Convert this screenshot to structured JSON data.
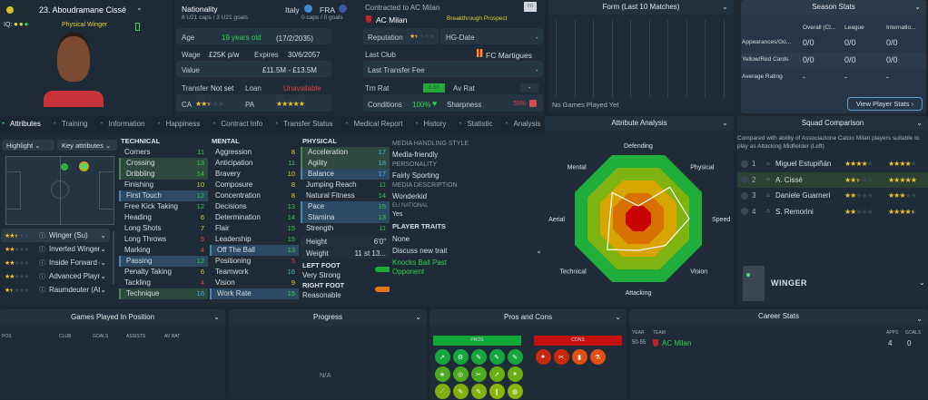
{
  "player": {
    "name": "23. Aboudramane Cissé",
    "iq_label": "IQ:",
    "role_desc": "Physical Winger"
  },
  "nationality": {
    "label": "Nationality",
    "caps1": "8 U21 caps / 3 U21 goals",
    "nation1": "Italy",
    "nation2": "FRA",
    "caps2": "0 caps / 0 goals"
  },
  "contract": {
    "label": "Contracted to AC Milan",
    "club": "AC Milan",
    "status": "Breakthrough Prospect",
    "badge": "PR"
  },
  "info": {
    "age_label": "Age",
    "age": "19 years old",
    "dob": "(17/2/2035)",
    "wage_label": "Wage",
    "wage": "£25K p/w",
    "expires_label": "Expires",
    "expires": "30/6/2057",
    "value_label": "Value",
    "value": "£11.5M - £13.5M",
    "transfer_label": "Transfer",
    "transfer": "Not set",
    "loan_label": "Loan",
    "loan": "Unavailable",
    "ca_label": "CA",
    "ca_stars": 2.5,
    "pa_label": "PA",
    "pa_stars": 5,
    "rep_label": "Reputation",
    "rep_stars": 1.5,
    "hg_label": "HG-Date",
    "hg": "-",
    "last_club_label": "Last Club",
    "last_club": "FC Martigues",
    "fee_label": "Last Transfer Fee",
    "fee": "-",
    "trn_label": "Trn Rat",
    "trn": "6.55",
    "av_label": "Av Rat",
    "av": "-",
    "cond_label": "Conditions",
    "cond": "100%",
    "sharp_label": "Sharpness",
    "sharp": "55%"
  },
  "tabs": [
    "Attributes",
    "Training",
    "Information",
    "Happiness",
    "Contract Info",
    "Transfer Status",
    "Medical Report",
    "History",
    "Statistic",
    "Analysis"
  ],
  "controls": {
    "highlight": "Highlight",
    "key_attr": "Key attributes"
  },
  "roles": [
    {
      "stars": 2.5,
      "name": "Winger (Su)"
    },
    {
      "stars": 2,
      "name": "Inverted Winger (At)"
    },
    {
      "stars": 2,
      "name": "Inside Forward (Su)"
    },
    {
      "stars": 2,
      "name": "Advanced Playmak..."
    },
    {
      "stars": 1.5,
      "name": "Raumdeuter (At)"
    }
  ],
  "technical": {
    "title": "TECHNICAL",
    "items": [
      [
        "Corners",
        11,
        ""
      ],
      [
        "Crossing",
        13,
        "g"
      ],
      [
        "Dribbling",
        14,
        "g"
      ],
      [
        "Finishing",
        10,
        ""
      ],
      [
        "First Touch",
        12,
        "b"
      ],
      [
        "Free Kick Taking",
        12,
        ""
      ],
      [
        "Heading",
        6,
        ""
      ],
      [
        "Long Shots",
        7,
        ""
      ],
      [
        "Long Throws",
        5,
        ""
      ],
      [
        "Marking",
        4,
        ""
      ],
      [
        "Passing",
        12,
        "b"
      ],
      [
        "Penalty Taking",
        6,
        ""
      ],
      [
        "Tackling",
        4,
        ""
      ],
      [
        "Technique",
        16,
        "g"
      ]
    ]
  },
  "mental": {
    "title": "MENTAL",
    "items": [
      [
        "Aggression",
        8,
        ""
      ],
      [
        "Anticipation",
        11,
        ""
      ],
      [
        "Bravery",
        10,
        ""
      ],
      [
        "Composure",
        8,
        ""
      ],
      [
        "Concentration",
        8,
        ""
      ],
      [
        "Decisions",
        13,
        ""
      ],
      [
        "Determination",
        14,
        ""
      ],
      [
        "Flair",
        15,
        ""
      ],
      [
        "Leadership",
        15,
        ""
      ],
      [
        "Off The Ball",
        13,
        "b"
      ],
      [
        "Positioning",
        5,
        ""
      ],
      [
        "Teamwork",
        16,
        ""
      ],
      [
        "Vision",
        9,
        ""
      ],
      [
        "Work Rate",
        15,
        "b"
      ]
    ]
  },
  "physical": {
    "title": "PHYSICAL",
    "items": [
      [
        "Acceleration",
        17,
        "g"
      ],
      [
        "Agility",
        18,
        "g"
      ],
      [
        "Balance",
        17,
        "b"
      ],
      [
        "Jumping Reach",
        11,
        ""
      ],
      [
        "Natural Fitness",
        14,
        ""
      ],
      [
        "Pace",
        15,
        "b"
      ],
      [
        "Stamina",
        13,
        "b"
      ],
      [
        "Strength",
        11,
        ""
      ]
    ],
    "height_label": "Height",
    "height": "6'0\"",
    "weight_label": "Weight",
    "weight": "11 st 13...",
    "left_foot_label": "LEFT FOOT",
    "left_foot": "Very Strong",
    "right_foot_label": "RIGHT FOOT",
    "right_foot": "Reasonable"
  },
  "media": {
    "style_label": "MEDIA HANDLING STYLE",
    "style": "Media-friendly",
    "personality_label": "PERSONALITY",
    "personality": "Fairly Sporting",
    "desc_label": "MEDIA DESCRIPTION",
    "desc": "Wonderkid",
    "eu_label": "EU NATIONAL",
    "eu": "Yes",
    "traits_label": "PLAYER TRAITS",
    "traits": "None",
    "discuss": "Discuss new trait",
    "trait1": "Knocks Ball Past Opponent"
  },
  "form": {
    "title": "Form (Last 10 Matches)",
    "empty": "No Games Played Yet"
  },
  "season": {
    "title": "Season Stats",
    "cols": [
      "Overall (Cl...",
      "League",
      "Internatio..."
    ],
    "rows": [
      {
        "label": "Appearances/Go...",
        "vals": [
          "0/0",
          "0/0",
          "0/0"
        ]
      },
      {
        "label": "Yellow/Red Cards",
        "vals": [
          "0/0",
          "0/0",
          "0/0"
        ]
      },
      {
        "label": "Average Rating",
        "vals": [
          "-",
          "-",
          "-"
        ]
      }
    ],
    "button": "View Player Stats"
  },
  "analysis": {
    "title": "Attribute Analysis",
    "axes": [
      "Defending",
      "Physical",
      "Speed",
      "Vision",
      "Attacking",
      "Technical",
      "Aerial",
      "Mental"
    ],
    "levels": [
      0.2,
      0.7,
      0.8,
      0.6,
      0.5,
      0.69,
      0.45,
      0.58
    ]
  },
  "squad": {
    "title": "Squad Comparison",
    "desc": "Compared with ability of Associazione Calcio Milan players suitable to play as Attacking Midfielder (Left)",
    "rows": [
      {
        "rank": "1",
        "name": "Miguel Estupiñán",
        "ca": 4,
        "pa": 4
      },
      {
        "rank": "2",
        "name": "A. Cissé",
        "ca": 2.5,
        "pa": 5
      },
      {
        "rank": "3",
        "name": "Daniele Guarneri",
        "ca": 2,
        "pa": 3
      },
      {
        "rank": "4",
        "name": "S. Remorini",
        "ca": 2,
        "pa": 4.5
      }
    ],
    "position": "WINGER"
  },
  "games": {
    "title": "Games Played In Position",
    "cols": [
      "POS",
      "CLUB",
      "GOALS",
      "ASSISTS",
      "AV RAT"
    ]
  },
  "progress": {
    "title": "Progress",
    "empty": "N/A"
  },
  "proscons": {
    "title": "Pros and Cons",
    "pros": "PROS",
    "cons": "CONS",
    "pro_icons": 15,
    "con_icons": 4
  },
  "career": {
    "title": "Career Stats",
    "cols": [
      "YEAR",
      "TEAM",
      "APPS",
      "GOALS"
    ],
    "rows": [
      {
        "year": "50-55",
        "team": "AC Milan",
        "apps": "4",
        "goals": "0"
      }
    ]
  },
  "colors": {
    "accent_green": "#33d04b",
    "pros_green": "#0fa838",
    "cons_red": "#c41010",
    "radar_outer": "#1fae3c",
    "radar_core": "#c80000"
  }
}
